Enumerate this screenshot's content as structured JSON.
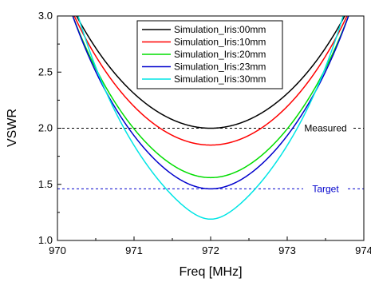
{
  "chart_data": {
    "type": "line",
    "xlabel": "Freq [MHz]",
    "ylabel": "VSWR",
    "xlim": [
      970,
      974
    ],
    "ylim": [
      1.0,
      3.0
    ],
    "xticks": [
      "970",
      "971",
      "972",
      "973",
      "974"
    ],
    "yticks": [
      "1.0",
      "1.5",
      "2.0",
      "2.5",
      "3.0"
    ],
    "legend_position": "top-center",
    "series": [
      {
        "name": "Simulation_Iris:00mm",
        "color": "#000000",
        "center": 972.0,
        "min": 2.0,
        "x": [
          970.25,
          973.85
        ],
        "y": [
          3.0,
          3.0
        ]
      },
      {
        "name": "Simulation_Iris:10mm",
        "color": "#ff0000",
        "center": 972.0,
        "min": 1.85,
        "x": [
          970.22,
          973.82
        ],
        "y": [
          3.0,
          3.0
        ]
      },
      {
        "name": "Simulation_Iris:20mm",
        "color": "#00dd00",
        "center": 972.0,
        "min": 1.56,
        "x": [
          970.2,
          973.77
        ],
        "y": [
          3.0,
          3.0
        ]
      },
      {
        "name": "Simulation_Iris:23mm",
        "color": "#0000cc",
        "center": 972.0,
        "min": 1.46,
        "x": [
          970.2,
          973.75
        ],
        "y": [
          3.0,
          3.0
        ]
      },
      {
        "name": "Simulation_Iris:30mm",
        "color": "#00e5e5",
        "center": 972.0,
        "min": 1.19,
        "x": [
          970.27,
          973.7
        ],
        "y": [
          3.0,
          3.0
        ]
      }
    ],
    "reference_lines": [
      {
        "label": "Measured",
        "y": 2.0,
        "color": "#000000"
      },
      {
        "label": "Target",
        "y": 1.46,
        "color": "#0000cc"
      }
    ]
  }
}
